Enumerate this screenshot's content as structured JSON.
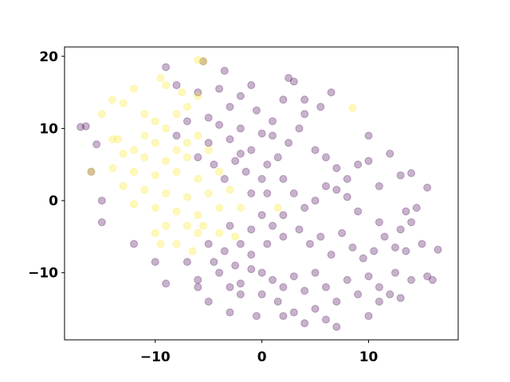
{
  "chart_data": {
    "type": "scatter",
    "xlim": [
      -18.5,
      18.4
    ],
    "ylim": [
      -19.3,
      21.3
    ],
    "xticks": [
      {
        "value": -10,
        "label": "−10"
      },
      0,
      10
    ],
    "yticks": [
      {
        "value": -10,
        "label": "−10"
      },
      0,
      10,
      20
    ],
    "alpha": 0.3,
    "series": [
      {
        "color": "#440154",
        "x": [
          -17,
          -16.5,
          -15.5,
          -16,
          -15,
          -15,
          -12,
          -10,
          -9,
          -7,
          -6,
          -9,
          -8,
          -6,
          -5.5,
          -3.5,
          -4,
          -3,
          -2,
          -1,
          -0.5,
          1,
          2,
          2.5,
          3,
          4,
          1,
          0,
          -1,
          -2,
          -3,
          -4,
          -5,
          -4.5,
          -3.5,
          -2.5,
          -1.5,
          0,
          0.5,
          1.5,
          2.5,
          3.5,
          4,
          5.5,
          6.5,
          5,
          6,
          7,
          8,
          9,
          10,
          10,
          12,
          13,
          15.5,
          14.5,
          13,
          11,
          9,
          8,
          7,
          6,
          5,
          4,
          3,
          2,
          1,
          0,
          -1,
          -2,
          -3,
          -3.5,
          -4.5,
          -5,
          -2.5,
          -1,
          0.5,
          2,
          3.5,
          4.5,
          5.5,
          6.5,
          7.5,
          8.5,
          9.5,
          10.5,
          11.5,
          12.5,
          13.5,
          15,
          16.5,
          15.5,
          14,
          12.5,
          11,
          10,
          9,
          8,
          7,
          6,
          5,
          4,
          3,
          2,
          1,
          0,
          -1,
          -2,
          -3,
          -4,
          -5,
          -6,
          -2,
          0,
          1.5,
          3,
          4,
          5,
          6,
          7,
          10,
          11,
          12,
          13,
          -3,
          -0.5,
          2,
          13.5,
          11,
          14,
          14,
          16,
          -7,
          -6,
          -5,
          -8,
          -2,
          0.5,
          2,
          -1
        ],
        "values": [
          10.2,
          10.3,
          7.8,
          4,
          0,
          -3,
          -6,
          -8.5,
          -11.5,
          -8.5,
          -11,
          18.5,
          16,
          15,
          19.3,
          18,
          15.5,
          13,
          14.5,
          16,
          12.5,
          11,
          14,
          17,
          16.5,
          14,
          9,
          9.3,
          7,
          6.5,
          8.5,
          10.5,
          8,
          5,
          3,
          5.5,
          4,
          3,
          5,
          6,
          8,
          10,
          12,
          13,
          15,
          7,
          6,
          4.5,
          3,
          5,
          5.5,
          9,
          6.5,
          3.5,
          1.8,
          -1,
          -4,
          -3,
          -1.5,
          0.5,
          1.5,
          2,
          0,
          -1,
          1,
          -2,
          -3.5,
          -2,
          -4,
          -6,
          -3.5,
          -7,
          -8.5,
          -6,
          -9,
          -7.5,
          -6,
          -5,
          -4,
          -6,
          -5,
          -7.5,
          -4.5,
          -6.5,
          -8,
          -7,
          -5,
          -6.5,
          -7,
          -6,
          -6.8,
          -10.5,
          -11,
          -10,
          -12,
          -10.5,
          -13,
          -11,
          -14,
          -12,
          -10,
          -12.5,
          -10.5,
          -12,
          -11,
          -10,
          -9.5,
          -11.5,
          -12,
          -10,
          -14,
          -12,
          -13,
          -13,
          -14,
          -15.5,
          -17,
          -15,
          -16.5,
          -17.5,
          -16,
          -14,
          -13,
          -13.5,
          -15.5,
          -16,
          -16,
          -1.5,
          2,
          3.8,
          -3,
          -11,
          11,
          6,
          11.5,
          9,
          10,
          1,
          3,
          1
        ]
      },
      {
        "color": "#fde725",
        "x": [
          -6,
          -5.5,
          -9.5,
          -9,
          -7.5,
          -6,
          -12,
          -14,
          -13,
          -15,
          -11,
          -10,
          -8,
          -7,
          -9,
          -11,
          -14,
          -12,
          -10,
          -8,
          -7,
          -6,
          -13,
          -11,
          -9,
          -7,
          -5,
          -14,
          -12,
          -10,
          -8,
          -6,
          -4,
          -13,
          -11,
          -9,
          -7,
          -5,
          -3,
          -12,
          -10,
          -8,
          -6,
          -4,
          -9,
          -7,
          -5.5,
          -8,
          -6.5,
          -4,
          -2.5,
          -10,
          -9.5,
          8.5,
          1.5,
          -2,
          -16,
          -13.5,
          -6
        ],
        "values": [
          19.5,
          19.3,
          17,
          16,
          15,
          14.5,
          15.5,
          14,
          13.5,
          12,
          12,
          11,
          12,
          13,
          10,
          9,
          8.5,
          7,
          8,
          7,
          8,
          9,
          6.5,
          6,
          5.5,
          6,
          7,
          4.5,
          4,
          3.5,
          4,
          3,
          4,
          2,
          1.5,
          1,
          0.5,
          1,
          1.5,
          -0.5,
          -1,
          -1.5,
          -2,
          -1,
          -3.5,
          -3.5,
          -3.5,
          -6,
          -7,
          -4.5,
          -5,
          -4.5,
          -6,
          12.8,
          -1,
          -1,
          4,
          8.5,
          -4.5
        ]
      }
    ]
  }
}
